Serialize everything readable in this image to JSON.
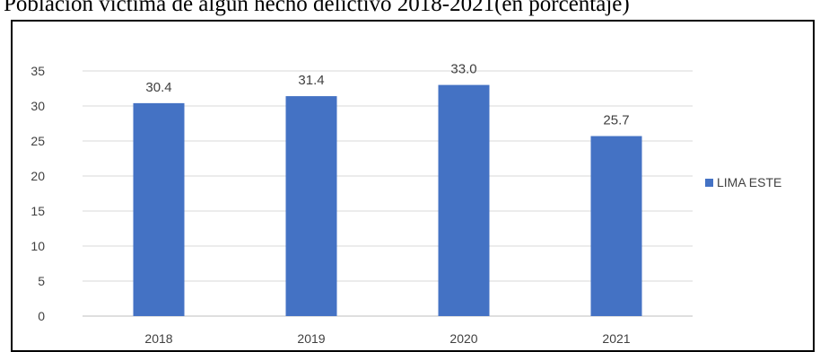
{
  "chart_data": {
    "type": "bar",
    "title": "Población víctima de algún hecho delictivo 2018-2021(en porcentaje)",
    "categories": [
      "2018",
      "2019",
      "2020",
      "2021"
    ],
    "series": [
      {
        "name": "LIMA ESTE",
        "values": [
          30.4,
          31.4,
          33.0,
          25.7
        ],
        "labels": [
          "30.4",
          "31.4",
          "33.0",
          "25.7"
        ],
        "color": "#4472C4"
      }
    ],
    "yticks": [
      "0",
      "5",
      "10",
      "15",
      "20",
      "25",
      "30",
      "35"
    ],
    "ylim": [
      0,
      35
    ],
    "grid": true,
    "legend_position": "right",
    "xlabel": "",
    "ylabel": ""
  }
}
